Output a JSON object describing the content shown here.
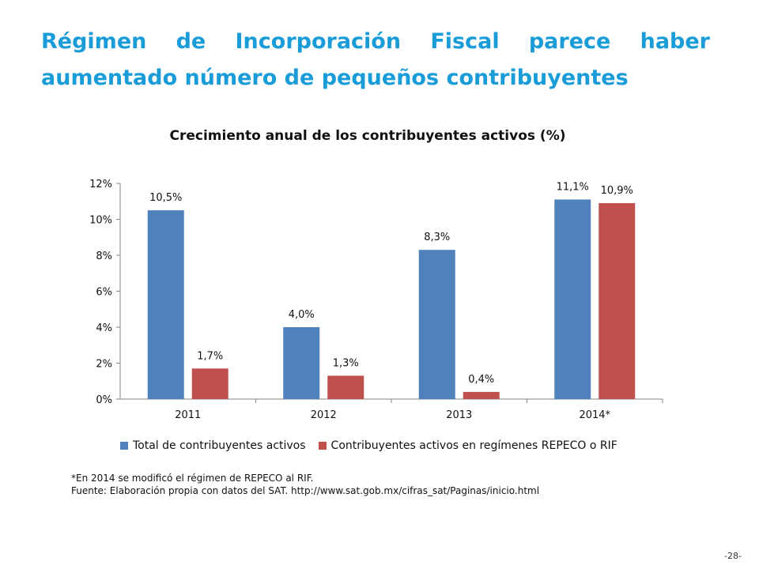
{
  "slide": {
    "title": "Régimen de Incorporación Fiscal parece haber aumentado número de pequeños contribuyentes",
    "page_number": "-28-"
  },
  "footnotes": {
    "note": "*En 2014 se modificó el régimen de REPECO al RIF.",
    "source": "Fuente: Elaboración propia con datos del SAT. http://www.sat.gob.mx/cifras_sat/Paginas/inicio.html"
  },
  "colors": {
    "accent": "#1a9cd8",
    "series1": "#4f81bd",
    "series2": "#c0504d"
  },
  "chart_data": {
    "type": "bar",
    "title": "Crecimiento anual de los contribuyentes activos (%)",
    "categories": [
      "2011",
      "2012",
      "2013",
      "2014*"
    ],
    "series": [
      {
        "name": "Total de contribuyentes activos",
        "values": [
          10.5,
          4.0,
          8.3,
          11.1
        ],
        "labels": [
          "10,5%",
          "4,0%",
          "8,3%",
          "11,1%"
        ],
        "color": "#4f81bd"
      },
      {
        "name": "Contribuyentes activos en regímenes REPECO o RIF",
        "values": [
          1.7,
          1.3,
          0.4,
          10.9
        ],
        "labels": [
          "1,7%",
          "1,3%",
          "0,4%",
          "10,9%"
        ],
        "color": "#c0504d"
      }
    ],
    "ylim": [
      0,
      12
    ],
    "yticks": [
      "0%",
      "2%",
      "4%",
      "6%",
      "8%",
      "10%",
      "12%"
    ],
    "legend": "bottom",
    "grid": false
  }
}
